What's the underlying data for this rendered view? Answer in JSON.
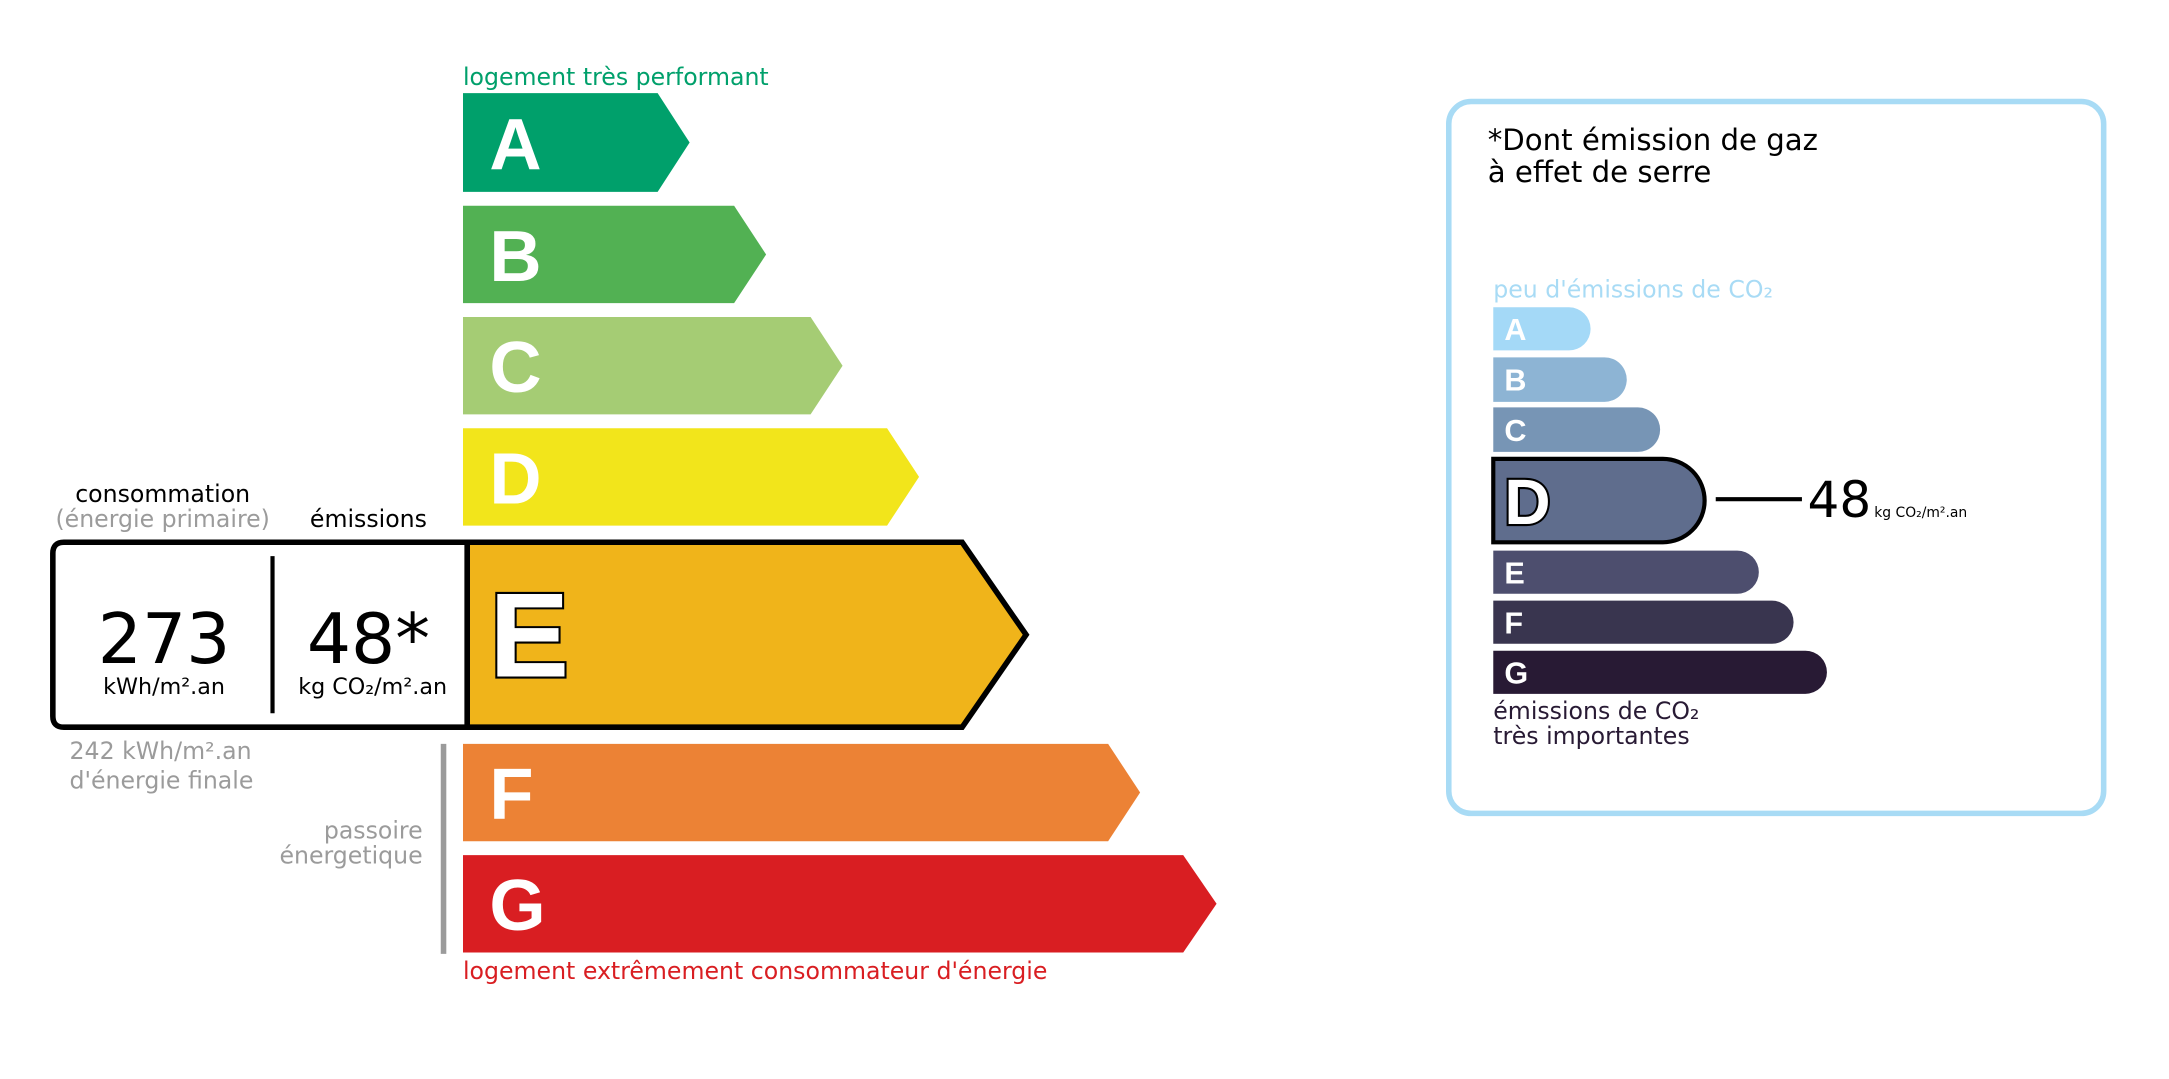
{
  "energy": {
    "top_label": "logement très performant",
    "bottom_label": "logement extrêmement consommateur d'énergie",
    "classes": [
      {
        "letter": "A",
        "color": "#00a06b"
      },
      {
        "letter": "B",
        "color": "#52b153"
      },
      {
        "letter": "C",
        "color": "#a5cc74"
      },
      {
        "letter": "D",
        "color": "#f2e51b"
      },
      {
        "letter": "E",
        "color": "#f0b41a"
      },
      {
        "letter": "F",
        "color": "#ec8235"
      },
      {
        "letter": "G",
        "color": "#d91e22"
      }
    ],
    "current_class": "E",
    "consumption_label": "consommation",
    "consumption_sublabel": "(énergie primaire)",
    "emissions_label": "émissions",
    "consumption_value": "273",
    "consumption_unit": "kWh/m².an",
    "emissions_value": "48*",
    "emissions_unit": "kg CO₂/m².an",
    "final_energy_value": "242 kWh/m².an",
    "final_energy_label": "d'énergie finale",
    "passoire_line1": "passoire",
    "passoire_line2": "énergetique"
  },
  "ges": {
    "title_line1": "*Dont émission de gaz",
    "title_line2": "à effet de serre",
    "top_label": "peu d'émissions de CO₂",
    "bottom_label_line1": "émissions de CO₂",
    "bottom_label_line2": "très importantes",
    "classes": [
      {
        "letter": "A",
        "color": "#a4d9f7"
      },
      {
        "letter": "B",
        "color": "#8db4d4"
      },
      {
        "letter": "C",
        "color": "#7795b5"
      },
      {
        "letter": "D",
        "color": "#5f6d8d"
      },
      {
        "letter": "E",
        "color": "#4d4e6e"
      },
      {
        "letter": "F",
        "color": "#39354f"
      },
      {
        "letter": "G",
        "color": "#281a34"
      }
    ],
    "current_class": "D",
    "value": "48",
    "unit": "kg CO₂/m².an",
    "border_color": "#a8dbf5"
  }
}
